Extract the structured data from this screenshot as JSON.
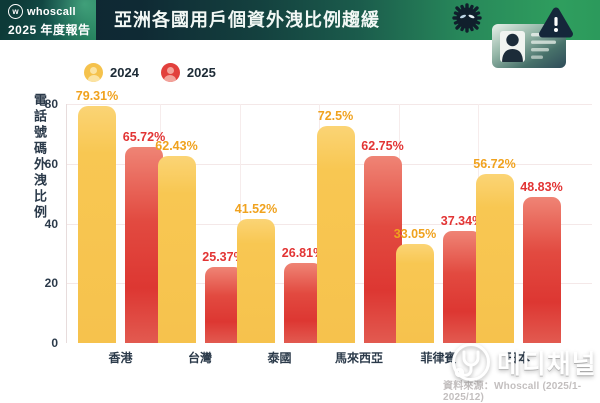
{
  "header": {
    "brand_name": "whoscall",
    "brand_subtitle": "2025 年度報告",
    "title": "亞洲各國用戶個資外洩比例趨緩",
    "icons": [
      "virus-icon",
      "id-card-icon",
      "warning-triangle-icon"
    ]
  },
  "chart_data": {
    "type": "bar",
    "title": "亞洲各國用戶個資外洩比例趨緩",
    "ylabel": "電話號碼外洩比例",
    "categories": [
      "香港",
      "台灣",
      "泰國",
      "馬來西亞",
      "菲律賓",
      "日本"
    ],
    "series": [
      {
        "name": "2024",
        "color": "#f8c752",
        "label_color": "#f0a21e",
        "values": [
          79.31,
          62.43,
          41.52,
          72.5,
          33.05,
          56.72
        ],
        "labels": [
          "79.31%",
          "62.43%",
          "41.52%",
          "72.5%",
          "33.05%",
          "56.72%"
        ]
      },
      {
        "name": "2025",
        "color": "#e2403a",
        "label_color": "#e23434",
        "values": [
          65.72,
          25.37,
          26.81,
          62.75,
          37.34,
          48.83
        ],
        "labels": [
          "65.72%",
          "25.37%",
          "26.81%",
          "62.75%",
          "37.34%",
          "48.83%"
        ]
      }
    ],
    "ylim": [
      0,
      80
    ],
    "yticks": [
      0,
      20,
      40,
      60,
      80
    ],
    "grid": true,
    "legend_position": "top-left"
  },
  "footer": {
    "watermark": "메디채널",
    "source": "資料來源：Whoscall (2025/1-2025/12)"
  },
  "colors": {
    "banner_dark": "#0f2a34",
    "banner_green": "#2f9e5e",
    "axis_text": "#2b3a4a",
    "gridline": "#f4e8e8"
  }
}
